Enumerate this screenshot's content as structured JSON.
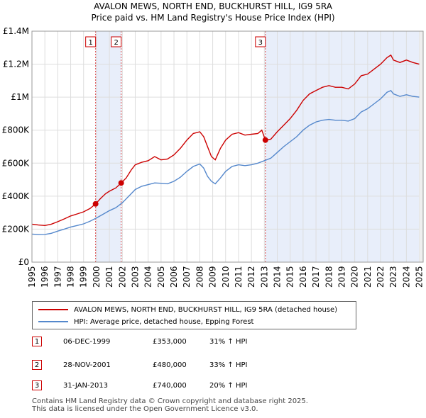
{
  "chart_data": {
    "type": "line",
    "title": "AVALON MEWS, NORTH END, BUCKHURST HILL, IG9 5RA",
    "subtitle": "Price paid vs. HM Land Registry's House Price Index (HPI)",
    "ylim": [
      0,
      1400000
    ],
    "xlim": [
      1995.0,
      2025.3
    ],
    "y_ticks": [
      {
        "value": 0,
        "label": "£0"
      },
      {
        "value": 200000,
        "label": "£200K"
      },
      {
        "value": 400000,
        "label": "£400K"
      },
      {
        "value": 600000,
        "label": "£600K"
      },
      {
        "value": 800000,
        "label": "£800K"
      },
      {
        "value": 1000000,
        "label": "£1M"
      },
      {
        "value": 1200000,
        "label": "£1.2M"
      },
      {
        "value": 1400000,
        "label": "£1.4M"
      }
    ],
    "x_ticks": [
      "1995",
      "1996",
      "1997",
      "1998",
      "1999",
      "2000",
      "2001",
      "2002",
      "2003",
      "2004",
      "2005",
      "2006",
      "2007",
      "2008",
      "2009",
      "2010",
      "2011",
      "2012",
      "2013",
      "2014",
      "2015",
      "2016",
      "2017",
      "2018",
      "2019",
      "2020",
      "2021",
      "2022",
      "2023",
      "2024",
      "2025"
    ],
    "grid": true,
    "series": [
      {
        "name": "AVALON MEWS, NORTH END, BUCKHURST HILL, IG9 5RA (detached house)",
        "color": "#cc0000",
        "points": [
          [
            1995.0,
            230000
          ],
          [
            1995.5,
            225000
          ],
          [
            1996.0,
            222000
          ],
          [
            1996.5,
            230000
          ],
          [
            1997.0,
            245000
          ],
          [
            1997.5,
            262000
          ],
          [
            1998.0,
            280000
          ],
          [
            1998.5,
            292000
          ],
          [
            1999.0,
            305000
          ],
          [
            1999.5,
            325000
          ],
          [
            1999.93,
            353000
          ],
          [
            2000.3,
            385000
          ],
          [
            2000.7,
            415000
          ],
          [
            2001.0,
            430000
          ],
          [
            2001.5,
            450000
          ],
          [
            2001.91,
            480000
          ],
          [
            2002.3,
            510000
          ],
          [
            2002.7,
            560000
          ],
          [
            2003.0,
            590000
          ],
          [
            2003.5,
            605000
          ],
          [
            2004.0,
            615000
          ],
          [
            2004.5,
            640000
          ],
          [
            2005.0,
            620000
          ],
          [
            2005.5,
            625000
          ],
          [
            2006.0,
            650000
          ],
          [
            2006.5,
            690000
          ],
          [
            2007.0,
            740000
          ],
          [
            2007.5,
            780000
          ],
          [
            2008.0,
            790000
          ],
          [
            2008.3,
            760000
          ],
          [
            2008.6,
            700000
          ],
          [
            2008.9,
            640000
          ],
          [
            2009.2,
            620000
          ],
          [
            2009.6,
            690000
          ],
          [
            2010.0,
            740000
          ],
          [
            2010.5,
            775000
          ],
          [
            2011.0,
            785000
          ],
          [
            2011.5,
            770000
          ],
          [
            2012.0,
            775000
          ],
          [
            2012.5,
            780000
          ],
          [
            2012.8,
            800000
          ],
          [
            2013.08,
            740000
          ],
          [
            2013.5,
            745000
          ],
          [
            2014.0,
            790000
          ],
          [
            2014.5,
            830000
          ],
          [
            2015.0,
            870000
          ],
          [
            2015.5,
            920000
          ],
          [
            2016.0,
            980000
          ],
          [
            2016.5,
            1020000
          ],
          [
            2017.0,
            1040000
          ],
          [
            2017.5,
            1060000
          ],
          [
            2018.0,
            1070000
          ],
          [
            2018.5,
            1060000
          ],
          [
            2019.0,
            1060000
          ],
          [
            2019.5,
            1050000
          ],
          [
            2020.0,
            1080000
          ],
          [
            2020.5,
            1130000
          ],
          [
            2021.0,
            1140000
          ],
          [
            2021.5,
            1170000
          ],
          [
            2022.0,
            1200000
          ],
          [
            2022.5,
            1240000
          ],
          [
            2022.8,
            1255000
          ],
          [
            2023.0,
            1225000
          ],
          [
            2023.5,
            1210000
          ],
          [
            2024.0,
            1225000
          ],
          [
            2024.5,
            1210000
          ],
          [
            2025.0,
            1200000
          ]
        ]
      },
      {
        "name": "HPI: Average price, detached house, Epping Forest",
        "color": "#5588cc",
        "points": [
          [
            1995.0,
            170000
          ],
          [
            1995.5,
            167000
          ],
          [
            1996.0,
            168000
          ],
          [
            1996.5,
            175000
          ],
          [
            1997.0,
            188000
          ],
          [
            1997.5,
            200000
          ],
          [
            1998.0,
            213000
          ],
          [
            1998.5,
            222000
          ],
          [
            1999.0,
            232000
          ],
          [
            1999.5,
            248000
          ],
          [
            2000.0,
            268000
          ],
          [
            2000.5,
            290000
          ],
          [
            2001.0,
            312000
          ],
          [
            2001.5,
            330000
          ],
          [
            2002.0,
            360000
          ],
          [
            2002.5,
            400000
          ],
          [
            2003.0,
            440000
          ],
          [
            2003.5,
            460000
          ],
          [
            2004.0,
            470000
          ],
          [
            2004.5,
            480000
          ],
          [
            2005.0,
            478000
          ],
          [
            2005.5,
            475000
          ],
          [
            2006.0,
            490000
          ],
          [
            2006.5,
            515000
          ],
          [
            2007.0,
            550000
          ],
          [
            2007.5,
            580000
          ],
          [
            2008.0,
            595000
          ],
          [
            2008.3,
            570000
          ],
          [
            2008.6,
            520000
          ],
          [
            2008.9,
            490000
          ],
          [
            2009.2,
            475000
          ],
          [
            2009.6,
            510000
          ],
          [
            2010.0,
            550000
          ],
          [
            2010.5,
            580000
          ],
          [
            2011.0,
            590000
          ],
          [
            2011.5,
            585000
          ],
          [
            2012.0,
            590000
          ],
          [
            2012.5,
            600000
          ],
          [
            2013.0,
            615000
          ],
          [
            2013.5,
            630000
          ],
          [
            2014.0,
            665000
          ],
          [
            2014.5,
            700000
          ],
          [
            2015.0,
            730000
          ],
          [
            2015.5,
            760000
          ],
          [
            2016.0,
            800000
          ],
          [
            2016.5,
            830000
          ],
          [
            2017.0,
            850000
          ],
          [
            2017.5,
            860000
          ],
          [
            2018.0,
            865000
          ],
          [
            2018.5,
            860000
          ],
          [
            2019.0,
            860000
          ],
          [
            2019.5,
            855000
          ],
          [
            2020.0,
            870000
          ],
          [
            2020.5,
            910000
          ],
          [
            2021.0,
            930000
          ],
          [
            2021.5,
            960000
          ],
          [
            2022.0,
            990000
          ],
          [
            2022.5,
            1030000
          ],
          [
            2022.8,
            1040000
          ],
          [
            2023.0,
            1020000
          ],
          [
            2023.5,
            1005000
          ],
          [
            2024.0,
            1015000
          ],
          [
            2024.5,
            1005000
          ],
          [
            2025.0,
            1000000
          ]
        ]
      }
    ],
    "sales": [
      {
        "label": "1",
        "x": 1999.93,
        "y": 353000
      },
      {
        "label": "2",
        "x": 2001.91,
        "y": 480000
      },
      {
        "label": "3",
        "x": 2013.08,
        "y": 740000
      }
    ]
  },
  "legend": {
    "property": "AVALON MEWS, NORTH END, BUCKHURST HILL, IG9 5RA (detached house)",
    "hpi": "HPI: Average price, detached house, Epping Forest"
  },
  "transactions": [
    {
      "num": "1",
      "date": "06-DEC-1999",
      "price": "£353,000",
      "hpi": "31% ↑ HPI"
    },
    {
      "num": "2",
      "date": "28-NOV-2001",
      "price": "£480,000",
      "hpi": "33% ↑ HPI"
    },
    {
      "num": "3",
      "date": "31-JAN-2013",
      "price": "£740,000",
      "hpi": "20% ↑ HPI"
    }
  ],
  "footer": {
    "line1": "Contains HM Land Registry data © Crown copyright and database right 2025.",
    "line2": "This data is licensed under the Open Government Licence v3.0."
  },
  "colors": {
    "property": "#cc0000",
    "hpi": "#5588cc",
    "shade": "#e8eefa",
    "grid": "#dddddd"
  }
}
